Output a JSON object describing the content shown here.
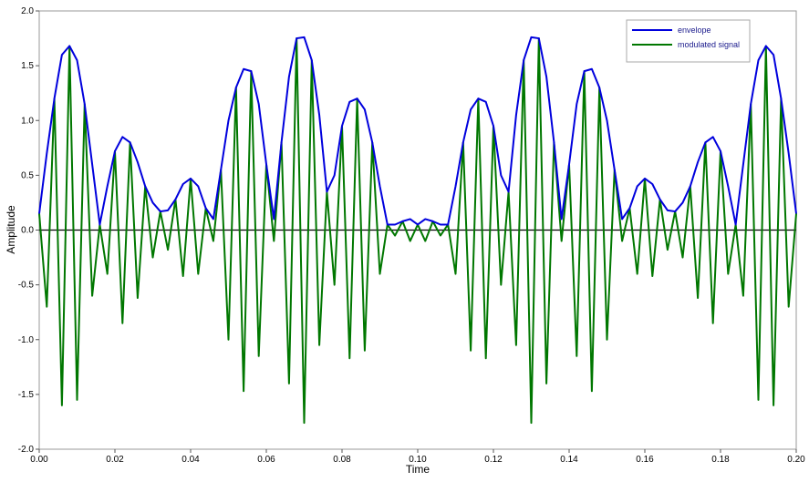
{
  "chart_data": {
    "type": "line",
    "x_label": "Time",
    "y_label": "Amplitude",
    "x": [
      0,
      0.002,
      0.004,
      0.006,
      0.008,
      0.01,
      0.012,
      0.014,
      0.016,
      0.018,
      0.02,
      0.022,
      0.024,
      0.026,
      0.028,
      0.03,
      0.032,
      0.034,
      0.036,
      0.038,
      0.04,
      0.042,
      0.044,
      0.046,
      0.048,
      0.05,
      0.052,
      0.054,
      0.056,
      0.058,
      0.06,
      0.062,
      0.064,
      0.066,
      0.068,
      0.07,
      0.072,
      0.074,
      0.076,
      0.078,
      0.08,
      0.082,
      0.084,
      0.086,
      0.088,
      0.09,
      0.092,
      0.094,
      0.096,
      0.098,
      0.1,
      0.102,
      0.104,
      0.106,
      0.108,
      0.11,
      0.112,
      0.114,
      0.116,
      0.118,
      0.12,
      0.122,
      0.124,
      0.126,
      0.128,
      0.13,
      0.132,
      0.134,
      0.136,
      0.138,
      0.14,
      0.142,
      0.144,
      0.146,
      0.148,
      0.15,
      0.152,
      0.154,
      0.156,
      0.158,
      0.16,
      0.162,
      0.164,
      0.166,
      0.168,
      0.17,
      0.172,
      0.174,
      0.176,
      0.178,
      0.18,
      0.182,
      0.184,
      0.186,
      0.188,
      0.19,
      0.192,
      0.194,
      0.196,
      0.198,
      0.2
    ],
    "series": [
      {
        "name": "envelope",
        "color": "#0000dd",
        "values": [
          0.15,
          0.7,
          1.2,
          1.6,
          1.68,
          1.55,
          1.15,
          0.6,
          0.05,
          0.4,
          0.72,
          0.85,
          0.8,
          0.62,
          0.4,
          0.25,
          0.17,
          0.18,
          0.28,
          0.42,
          0.47,
          0.4,
          0.2,
          0.1,
          0.55,
          1.0,
          1.3,
          1.47,
          1.45,
          1.15,
          0.6,
          0.1,
          0.8,
          1.4,
          1.75,
          1.76,
          1.55,
          1.05,
          0.35,
          0.5,
          0.95,
          1.17,
          1.2,
          1.1,
          0.8,
          0.4,
          0.05,
          0.05,
          0.08,
          0.1,
          0.05,
          0.1,
          0.08,
          0.05,
          0.05,
          0.4,
          0.8,
          1.1,
          1.2,
          1.17,
          0.95,
          0.5,
          0.35,
          1.05,
          1.55,
          1.76,
          1.75,
          1.4,
          0.8,
          0.1,
          0.6,
          1.15,
          1.45,
          1.47,
          1.3,
          1.0,
          0.55,
          0.1,
          0.2,
          0.4,
          0.47,
          0.42,
          0.28,
          0.18,
          0.17,
          0.25,
          0.4,
          0.62,
          0.8,
          0.85,
          0.72,
          0.4,
          0.05,
          0.6,
          1.15,
          1.55,
          1.68,
          1.6,
          1.2,
          0.7,
          0.15
        ]
      },
      {
        "name": "modulated signal",
        "color": "#007700",
        "values": [
          0.15,
          -0.7,
          1.2,
          -1.6,
          1.68,
          -1.55,
          1.15,
          -0.6,
          0.05,
          -0.4,
          0.72,
          -0.85,
          0.8,
          -0.62,
          0.4,
          -0.25,
          0.17,
          -0.18,
          0.28,
          -0.42,
          0.47,
          -0.4,
          0.2,
          -0.1,
          0.55,
          -1.0,
          1.3,
          -1.47,
          1.45,
          -1.15,
          0.6,
          -0.1,
          0.8,
          -1.4,
          1.75,
          -1.76,
          1.55,
          -1.05,
          0.35,
          -0.5,
          0.95,
          -1.17,
          1.2,
          -1.1,
          0.8,
          -0.4,
          0.05,
          -0.05,
          0.08,
          -0.1,
          0.05,
          -0.1,
          0.08,
          -0.05,
          0.05,
          -0.4,
          0.8,
          -1.1,
          1.2,
          -1.17,
          0.95,
          -0.5,
          0.35,
          -1.05,
          1.55,
          -1.76,
          1.75,
          -1.4,
          0.8,
          -0.1,
          0.6,
          -1.15,
          1.45,
          -1.47,
          1.3,
          -1.0,
          0.55,
          -0.1,
          0.2,
          -0.4,
          0.47,
          -0.42,
          0.28,
          -0.18,
          0.17,
          -0.25,
          0.4,
          -0.62,
          0.8,
          -0.85,
          0.72,
          -0.4,
          0.05,
          -0.6,
          1.15,
          -1.55,
          1.68,
          -1.6,
          1.2,
          -0.7,
          0.15
        ]
      }
    ],
    "xlim": [
      0,
      0.2
    ],
    "xticks": [
      {
        "value": 0,
        "label": "0.00"
      },
      0.02,
      0.04,
      0.06,
      0.08,
      {
        "value": 0.1,
        "label": "0.10"
      },
      0.12,
      0.14,
      0.16,
      0.18,
      {
        "value": 0.2,
        "label": "0.20"
      }
    ],
    "ylim": [
      -2,
      2
    ],
    "yticks": [
      {
        "value": -2,
        "label": "-2.0"
      },
      -1.5,
      {
        "value": -1,
        "label": "-1.0"
      },
      -0.5,
      {
        "value": 0,
        "label": "0.0"
      },
      0.5,
      {
        "value": 1,
        "label": "1.0"
      },
      1.5,
      {
        "value": 2,
        "label": "2.0"
      }
    ],
    "legend": "upper right"
  }
}
